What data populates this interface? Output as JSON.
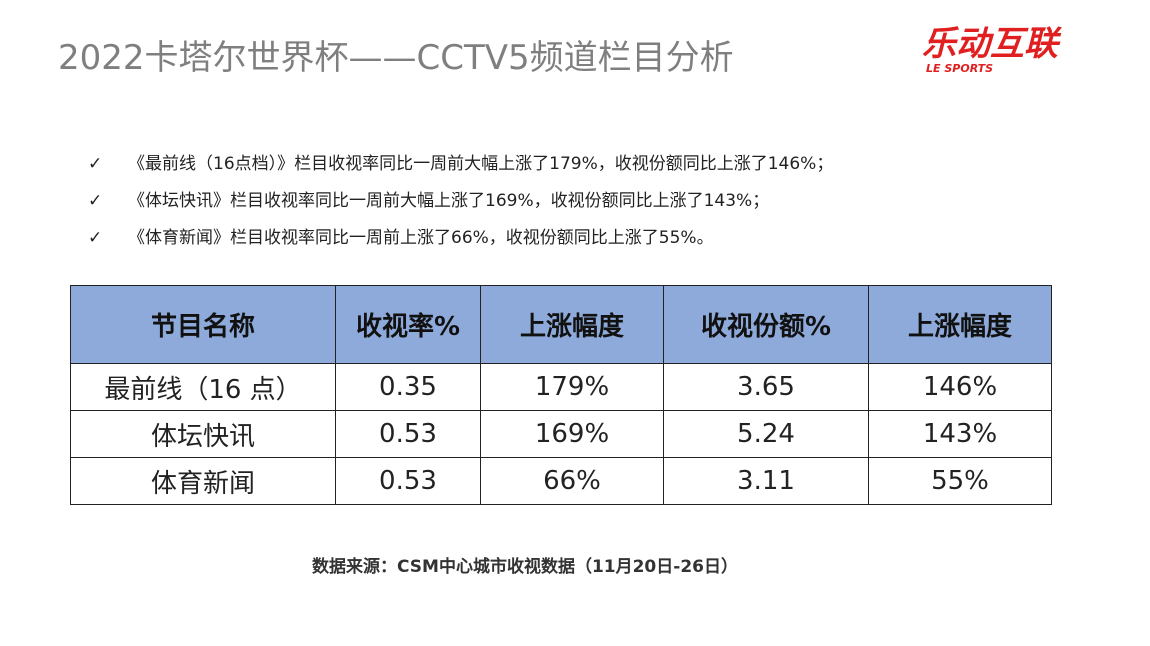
{
  "header": {
    "title": "2022卡塔尔世界杯——CCTV5频道栏目分析",
    "logo": "乐动互联",
    "logo_sub": "LE SPORTS"
  },
  "bullets": [
    "《最前线（16点档）》栏目收视率同比一周前大幅上涨了179%，收视份额同比上涨了146%；",
    "《体坛快讯》栏目收视率同比一周前大幅上涨了169%，收视份额同比上涨了143%；",
    "《体育新闻》栏目收视率同比一周前上涨了66%，收视份额同比上涨了55%。"
  ],
  "table": {
    "header": [
      "节目名称",
      "收视率%",
      "上涨幅度",
      "收视份额%",
      "上涨幅度"
    ],
    "rows": [
      [
        "最前线（16 点）",
        "0.35",
        "179%",
        "3.65",
        "146%"
      ],
      [
        "体坛快讯",
        "0.53",
        "169%",
        "5.24",
        "143%"
      ],
      [
        "体育新闻",
        "0.53",
        "66%",
        "3.11",
        "55%"
      ]
    ]
  },
  "source": "数据来源：CSM中心城市收视数据（11月20日-26日）"
}
